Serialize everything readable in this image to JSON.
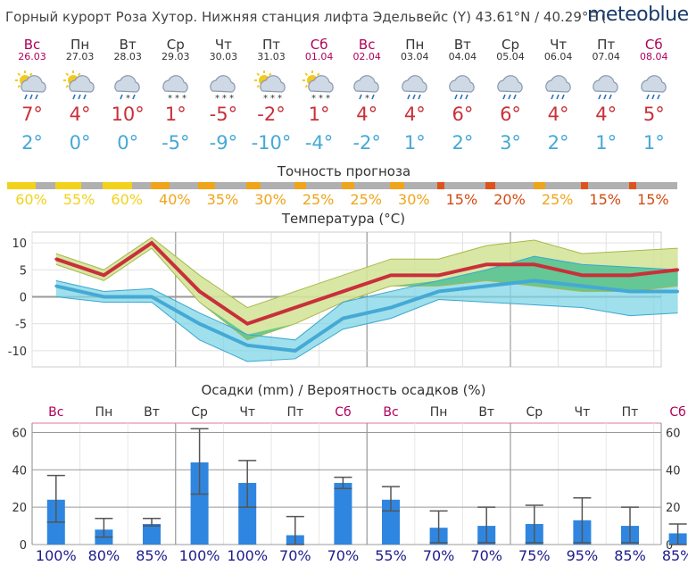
{
  "header": {
    "title": "Горный курорт Роза Хутор. Нижняя станция лифта Эдельвейс (Y)  43.61°N / 40.29°E (",
    "logo": "meteoblue"
  },
  "days": [
    {
      "name": "Вс",
      "date": "26.03",
      "icon": "sun-cloud-rain-icon",
      "tmax": "7°",
      "tmin": "2°",
      "weekend": true
    },
    {
      "name": "Пн",
      "date": "27.03",
      "icon": "sun-cloud-rain-icon",
      "tmax": "4°",
      "tmin": "0°",
      "weekend": false
    },
    {
      "name": "Вт",
      "date": "28.03",
      "icon": "cloud-sleet-icon",
      "tmax": "10°",
      "tmin": "0°",
      "weekend": false
    },
    {
      "name": "Ср",
      "date": "29.03",
      "icon": "cloud-snow-icon",
      "tmax": "1°",
      "tmin": "-5°",
      "weekend": false
    },
    {
      "name": "Чт",
      "date": "30.03",
      "icon": "cloud-snow-icon",
      "tmax": "-5°",
      "tmin": "-9°",
      "weekend": false
    },
    {
      "name": "Пт",
      "date": "31.03",
      "icon": "sun-cloud-snow-icon",
      "tmax": "-2°",
      "tmin": "-10°",
      "weekend": false
    },
    {
      "name": "Сб",
      "date": "01.04",
      "icon": "sun-cloud-snow-icon",
      "tmax": "1°",
      "tmin": "-4°",
      "weekend": true
    },
    {
      "name": "Вс",
      "date": "02.04",
      "icon": "cloud-sleet-icon",
      "tmax": "4°",
      "tmin": "-2°",
      "weekend": true
    },
    {
      "name": "Пн",
      "date": "03.04",
      "icon": "cloud-rain-icon",
      "tmax": "4°",
      "tmin": "1°",
      "weekend": false
    },
    {
      "name": "Вт",
      "date": "04.04",
      "icon": "cloud-rain-icon",
      "tmax": "6°",
      "tmin": "2°",
      "weekend": false
    },
    {
      "name": "Ср",
      "date": "05.04",
      "icon": "cloud-rain-icon",
      "tmax": "6°",
      "tmin": "3°",
      "weekend": false
    },
    {
      "name": "Чт",
      "date": "06.04",
      "icon": "cloud-rain-icon",
      "tmax": "4°",
      "tmin": "2°",
      "weekend": false
    },
    {
      "name": "Пт",
      "date": "07.04",
      "icon": "cloud-rain-icon",
      "tmax": "4°",
      "tmin": "1°",
      "weekend": false
    },
    {
      "name": "Сб",
      "date": "08.04",
      "icon": "cloud-rain-icon",
      "tmax": "5°",
      "tmin": "1°",
      "weekend": true
    }
  ],
  "accuracy": {
    "title": "Точность прогноза",
    "items": [
      {
        "pct": "60%",
        "value": 60,
        "color": "#f2d21b"
      },
      {
        "pct": "55%",
        "value": 55,
        "color": "#f2d21b"
      },
      {
        "pct": "60%",
        "value": 60,
        "color": "#f2d21b"
      },
      {
        "pct": "40%",
        "value": 40,
        "color": "#f0a41a"
      },
      {
        "pct": "35%",
        "value": 35,
        "color": "#f0a41a"
      },
      {
        "pct": "30%",
        "value": 30,
        "color": "#f0a41a"
      },
      {
        "pct": "25%",
        "value": 25,
        "color": "#f0a41a"
      },
      {
        "pct": "25%",
        "value": 25,
        "color": "#f0a41a"
      },
      {
        "pct": "30%",
        "value": 30,
        "color": "#f0a41a"
      },
      {
        "pct": "15%",
        "value": 15,
        "color": "#e0521a"
      },
      {
        "pct": "20%",
        "value": 20,
        "color": "#e0521a"
      },
      {
        "pct": "25%",
        "value": 25,
        "color": "#f0a41a"
      },
      {
        "pct": "15%",
        "value": 15,
        "color": "#e0521a"
      },
      {
        "pct": "15%",
        "value": 15,
        "color": "#e0521a"
      }
    ]
  },
  "colors": {
    "tmax": "#c8303a",
    "tmin": "#45a9d6",
    "tmax_band": "#d4e49a",
    "tmin_band": "#7fd6e6",
    "overlap_band": "#5cc38a",
    "precip_bar": "#2f86e0",
    "weekend": "#b0005a",
    "prob_text": "#1c1c8c"
  },
  "chart_data": [
    {
      "type": "line",
      "title": "Температура (°C)",
      "x": [
        "26.03",
        "27.03",
        "28.03",
        "29.03",
        "30.03",
        "31.03",
        "01.04",
        "02.04",
        "03.04",
        "04.04",
        "05.04",
        "06.04",
        "07.04",
        "08.04"
      ],
      "ylim": [
        -13,
        12
      ],
      "yticks": [
        10,
        5,
        0,
        -5,
        -10
      ],
      "grid": true,
      "series": [
        {
          "name": "tmax",
          "values": [
            7,
            4,
            10,
            1,
            -5,
            -2,
            1,
            4,
            4,
            6,
            6,
            4,
            4,
            5
          ]
        },
        {
          "name": "tmax_band_high",
          "values": [
            8,
            5,
            11,
            4,
            -2,
            1,
            4,
            7,
            7,
            9.5,
            10.5,
            8,
            8.5,
            9
          ]
        },
        {
          "name": "tmax_band_low",
          "values": [
            6,
            3,
            9,
            -1,
            -8,
            -5,
            -1,
            2,
            2,
            3,
            2,
            1,
            1,
            2
          ]
        },
        {
          "name": "tmin",
          "values": [
            2,
            0,
            0,
            -5,
            -9,
            -10,
            -4,
            -2,
            1,
            2,
            3,
            2,
            1,
            1
          ]
        },
        {
          "name": "tmin_band_high",
          "values": [
            3,
            1,
            1.5,
            -3,
            -7,
            -8,
            -1,
            1,
            3,
            5,
            7.5,
            6,
            5.5,
            5
          ]
        },
        {
          "name": "tmin_band_low",
          "values": [
            0,
            -1,
            -1,
            -8,
            -12,
            -11.5,
            -6,
            -4,
            -0.5,
            -1,
            -1.5,
            -2,
            -3.5,
            -3
          ]
        }
      ]
    },
    {
      "type": "bar",
      "title": "Осадки (mm) / Вероятность осадков (%)",
      "categories": [
        "Вс",
        "Пн",
        "Вт",
        "Ср",
        "Чт",
        "Пт",
        "Сб",
        "Вс",
        "Пн",
        "Вт",
        "Ср",
        "Чт",
        "Пт",
        "Сб"
      ],
      "values": [
        24,
        8,
        11,
        44,
        33,
        5,
        33,
        24,
        9,
        10,
        11,
        13,
        10,
        6
      ],
      "error_low": [
        12,
        4,
        10,
        27,
        20,
        0,
        30,
        18,
        1,
        1,
        1,
        1,
        1,
        0
      ],
      "error_high": [
        37,
        14,
        14,
        62,
        45,
        15,
        36,
        31,
        18,
        20,
        21,
        25,
        20,
        11
      ],
      "probability": [
        "100%",
        "80%",
        "85%",
        "100%",
        "100%",
        "70%",
        "70%",
        "55%",
        "70%",
        "70%",
        "75%",
        "95%",
        "85%",
        "85%"
      ],
      "ylim": [
        0,
        65
      ],
      "yticks": [
        0,
        20,
        40,
        60
      ],
      "grid": true
    }
  ]
}
